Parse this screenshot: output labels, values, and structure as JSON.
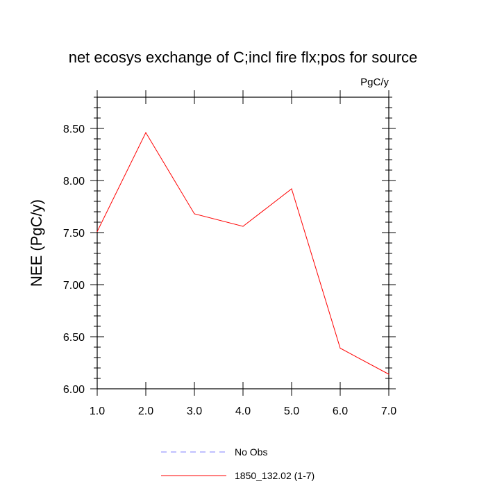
{
  "chart_data": {
    "type": "line",
    "title": "net ecosys exchange of C;incl fire flx;pos for source",
    "units": "PgC/y",
    "xlabel": "",
    "ylabel": "NEE  (PgC/y)",
    "xlim": [
      1,
      7
    ],
    "ylim": [
      6.0,
      8.8
    ],
    "x_ticks": [
      1,
      2,
      3,
      4,
      5,
      6,
      7
    ],
    "x_tick_labels": [
      "1.0",
      "2.0",
      "3.0",
      "4.0",
      "5.0",
      "6.0",
      "7.0"
    ],
    "y_ticks": [
      6.0,
      6.5,
      7.0,
      7.5,
      8.0,
      8.5
    ],
    "y_tick_labels": [
      "6.00",
      "6.50",
      "7.00",
      "7.50",
      "8.00",
      "8.50"
    ],
    "series": [
      {
        "name": "No Obs",
        "color": "#8080ff",
        "dashed": true,
        "x": [],
        "values": []
      },
      {
        "name": "1850_132.02 (1-7)",
        "color": "#ff0000",
        "dashed": false,
        "x": [
          1,
          2,
          3,
          4,
          5,
          6,
          7
        ],
        "values": [
          7.51,
          8.46,
          7.68,
          7.56,
          7.92,
          6.39,
          6.14
        ]
      }
    ],
    "legend_position": "bottom",
    "grid": false
  }
}
